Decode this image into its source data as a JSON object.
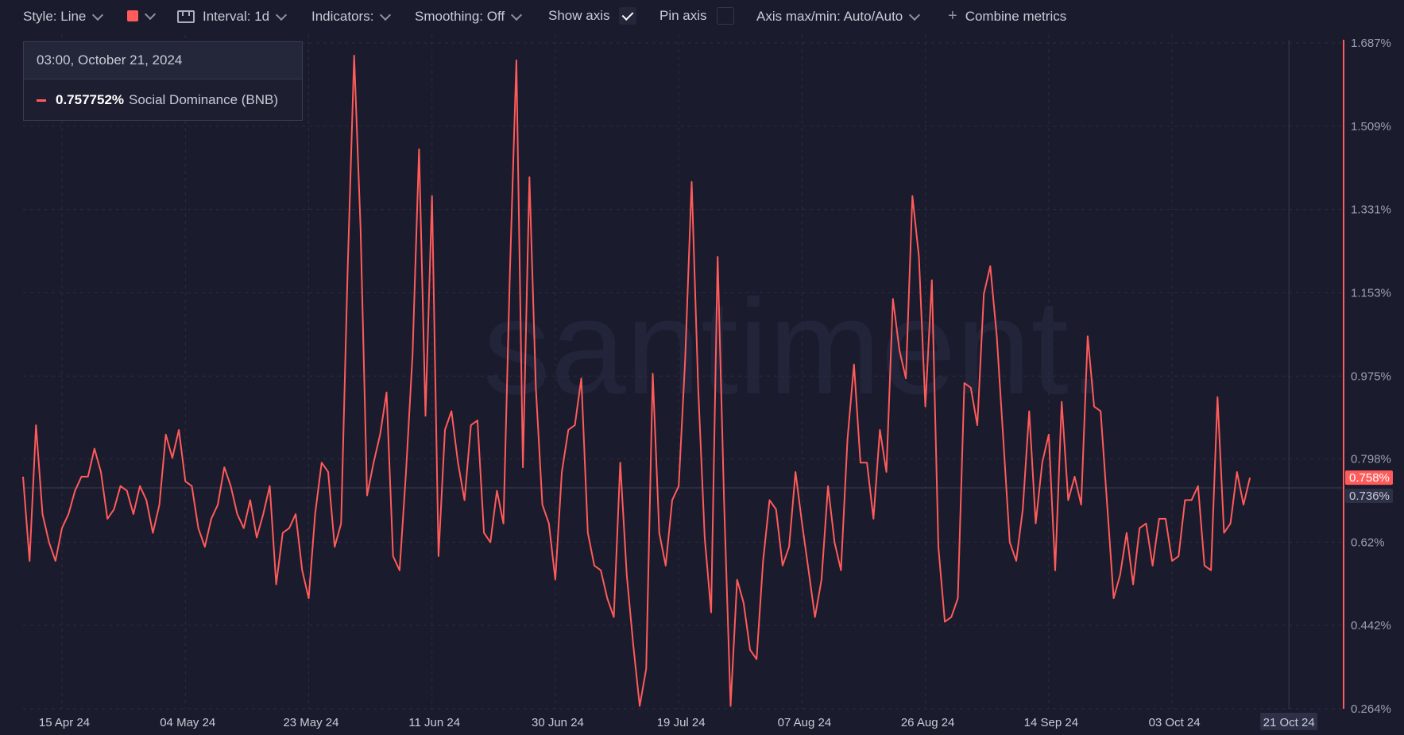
{
  "toolbar": {
    "style_label": "Style: Line",
    "line_color": "#ff5b5b",
    "interval_label": "Interval: 1d",
    "indicators_label": "Indicators:",
    "smoothing_label": "Smoothing: Off",
    "show_axis_label": "Show axis",
    "show_axis_checked": true,
    "pin_axis_label": "Pin axis",
    "pin_axis_checked": false,
    "axis_maxmin_label": "Axis max/min: Auto/Auto",
    "combine_label": "Combine metrics"
  },
  "tooltip": {
    "date": "03:00, October 21, 2024",
    "value": "0.757752%",
    "metric": "Social Dominance (BNB)"
  },
  "watermark": "santiment.",
  "chart_data": {
    "type": "line",
    "series": [
      {
        "name": "Social Dominance (BNB)",
        "color": "#ff5b5b",
        "start_date": "2024-04-09",
        "values": [
          0.76,
          0.58,
          0.87,
          0.68,
          0.62,
          0.58,
          0.65,
          0.68,
          0.73,
          0.76,
          0.76,
          0.82,
          0.77,
          0.67,
          0.69,
          0.74,
          0.73,
          0.68,
          0.74,
          0.71,
          0.64,
          0.7,
          0.85,
          0.8,
          0.86,
          0.75,
          0.74,
          0.65,
          0.61,
          0.67,
          0.7,
          0.78,
          0.74,
          0.68,
          0.65,
          0.71,
          0.63,
          0.68,
          0.74,
          0.53,
          0.64,
          0.65,
          0.68,
          0.56,
          0.5,
          0.68,
          0.79,
          0.77,
          0.61,
          0.66,
          1.2,
          1.66,
          1.29,
          0.72,
          0.79,
          0.85,
          0.94,
          0.59,
          0.56,
          0.77,
          1.02,
          1.46,
          0.89,
          1.36,
          0.59,
          0.86,
          0.9,
          0.79,
          0.71,
          0.87,
          0.88,
          0.64,
          0.62,
          0.73,
          0.66,
          1.2,
          1.65,
          0.78,
          1.4,
          0.95,
          0.7,
          0.66,
          0.54,
          0.77,
          0.86,
          0.87,
          0.97,
          0.64,
          0.57,
          0.56,
          0.5,
          0.46,
          0.79,
          0.55,
          0.4,
          0.27,
          0.35,
          0.98,
          0.64,
          0.57,
          0.71,
          0.74,
          1.01,
          1.39,
          0.95,
          0.63,
          0.47,
          1.23,
          0.7,
          0.27,
          0.54,
          0.49,
          0.39,
          0.37,
          0.58,
          0.71,
          0.69,
          0.57,
          0.61,
          0.77,
          0.66,
          0.56,
          0.46,
          0.54,
          0.74,
          0.62,
          0.56,
          0.84,
          1.0,
          0.79,
          0.79,
          0.67,
          0.86,
          0.77,
          1.14,
          1.03,
          0.97,
          1.36,
          1.23,
          0.91,
          1.18,
          0.61,
          0.45,
          0.46,
          0.5,
          0.96,
          0.95,
          0.87,
          1.15,
          1.21,
          1.06,
          0.84,
          0.62,
          0.58,
          0.69,
          0.9,
          0.66,
          0.79,
          0.85,
          0.56,
          0.92,
          0.71,
          0.76,
          0.7,
          1.06,
          0.91,
          0.9,
          0.7,
          0.5,
          0.55,
          0.64,
          0.53,
          0.65,
          0.66,
          0.57,
          0.67,
          0.67,
          0.58,
          0.59,
          0.71,
          0.71,
          0.74,
          0.57,
          0.56,
          0.93,
          0.64,
          0.66,
          0.77,
          0.7,
          0.758
        ]
      }
    ],
    "y_ticks": [
      "1.687%",
      "1.509%",
      "1.331%",
      "1.153%",
      "0.975%",
      "0.798%",
      "0.62%",
      "0.442%",
      "0.264%"
    ],
    "y_tick_values": [
      1.687,
      1.509,
      1.331,
      1.153,
      0.975,
      0.798,
      0.62,
      0.442,
      0.264
    ],
    "ylim": [
      0.264,
      1.687
    ],
    "x_ticks": [
      "15 Apr 24",
      "04 May 24",
      "23 May 24",
      "11 Jun 24",
      "30 Jun 24",
      "19 Jul 24",
      "07 Aug 24",
      "26 Aug 24",
      "14 Sep 24",
      "03 Oct 24"
    ],
    "x_tick_days": [
      6,
      25,
      44,
      63,
      82,
      101,
      120,
      139,
      158,
      177
    ],
    "crosshair": {
      "x_label": "21 Oct 24",
      "x_day": 195,
      "y_label": "0.736%",
      "y_value": 0.736
    },
    "current_value_label": "0.758%",
    "current_value": 0.758,
    "grid": true,
    "legend": "none"
  }
}
